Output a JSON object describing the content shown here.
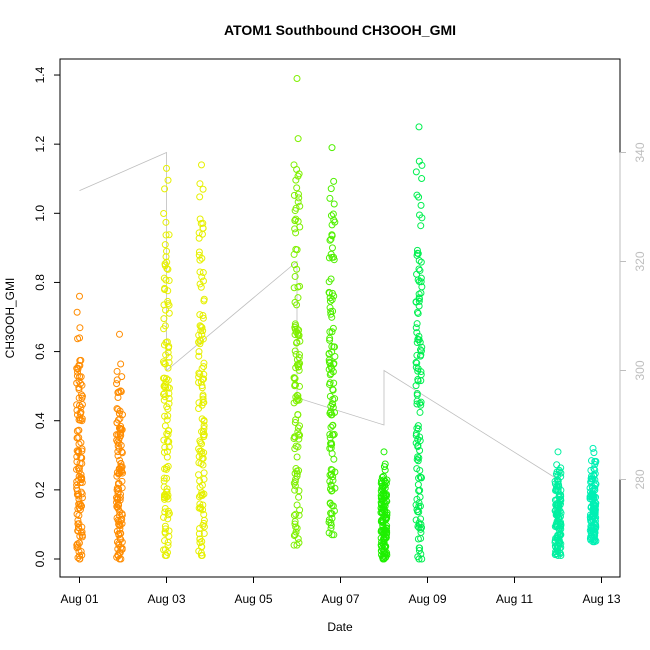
{
  "chart_data": {
    "type": "scatter",
    "title": "ATOM1 Southbound CH3OOH_GMI",
    "xlabel": "Date",
    "ylabel": "CH3OOH_GMI",
    "xlim": [
      "2016-08-01",
      "2016-08-13"
    ],
    "ylim": [
      0,
      1.4
    ],
    "x_ticks": [
      "Aug 01",
      "Aug 03",
      "Aug 05",
      "Aug 07",
      "Aug 09",
      "Aug 11",
      "Aug 13"
    ],
    "y_ticks": [
      "0.0",
      "0.2",
      "0.4",
      "0.6",
      "0.8",
      "1.0",
      "1.2",
      "1.4"
    ],
    "y2_range": [
      260,
      350
    ],
    "y2_ticks": [
      "280",
      "300",
      "320",
      "340"
    ],
    "y2_color": "#bebebe",
    "grid": false,
    "point_series": [
      {
        "x": "2016-08-01",
        "y_min": 0.0,
        "y_max": 0.76,
        "color": "#ff8c00"
      },
      {
        "x": "2016-08-01",
        "y_min": 0.0,
        "y_max": 0.65,
        "color": "#ff8c00"
      },
      {
        "x": "2016-08-03",
        "y_min": 0.01,
        "y_max": 1.13,
        "color": "#e6f000"
      },
      {
        "x": "2016-08-03",
        "y_min": 0.01,
        "y_max": 1.14,
        "color": "#e6f000"
      },
      {
        "x": "2016-08-06",
        "y_min": 0.04,
        "y_max": 1.39,
        "color": "#7ff000"
      },
      {
        "x": "2016-08-06",
        "y_min": 0.07,
        "y_max": 1.19,
        "color": "#50f000"
      },
      {
        "x": "2016-08-08",
        "y_min": 0.0,
        "y_max": 0.31,
        "color": "#1ef000"
      },
      {
        "x": "2016-08-08",
        "y_min": 0.0,
        "y_max": 1.25,
        "color": "#00f050"
      },
      {
        "x": "2016-08-12",
        "y_min": 0.01,
        "y_max": 0.31,
        "color": "#00f0a0"
      },
      {
        "x": "2016-08-12",
        "y_min": 0.05,
        "y_max": 0.32,
        "color": "#00f0b4"
      }
    ],
    "secondary_line": {
      "color": "#bebebe",
      "points": [
        {
          "x": "2016-08-01",
          "y2": 333
        },
        {
          "x": "2016-08-01",
          "y2": 333
        },
        {
          "x": "2016-08-03",
          "y2": 340
        },
        {
          "x": "2016-08-03",
          "y2": 300
        },
        {
          "x": "2016-08-06",
          "y2": 320
        },
        {
          "x": "2016-08-06",
          "y2": 295
        },
        {
          "x": "2016-08-08",
          "y2": 290
        },
        {
          "x": "2016-08-08",
          "y2": 300
        },
        {
          "x": "2016-08-12",
          "y2": 280
        },
        {
          "x": "2016-08-12",
          "y2": 280
        }
      ]
    }
  }
}
